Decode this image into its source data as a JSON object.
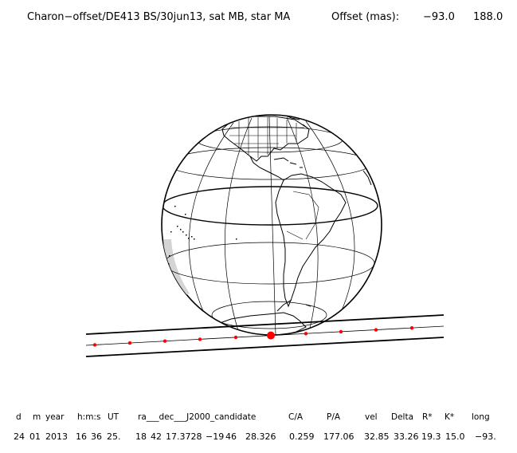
{
  "header": {
    "event": "Charon−offset/DE413 BS/30jun13, sat MB, star MA",
    "offset_label": "Offset (mas):",
    "offset_ra": "−93.0",
    "offset_dec": "188.0"
  },
  "table": {
    "headers": [
      "d",
      "m",
      "year",
      "h:m:s",
      "UT",
      "ra___dec___J2000_candidate",
      "C/A",
      "P/A",
      "vel",
      "Delta",
      "R*",
      "K*",
      "long"
    ],
    "values": [
      "24",
      "01",
      "2013",
      "16",
      "36",
      "25.",
      "18",
      "42",
      "17.3728",
      "−19",
      "46",
      "28.326",
      "0.259",
      "177.06",
      "32.85",
      "33.26",
      "19.3",
      "15.0",
      "−93."
    ]
  },
  "colors": {
    "ink": "#000000",
    "track_point": "#ff0000",
    "shadow": "#c8c8c8"
  }
}
